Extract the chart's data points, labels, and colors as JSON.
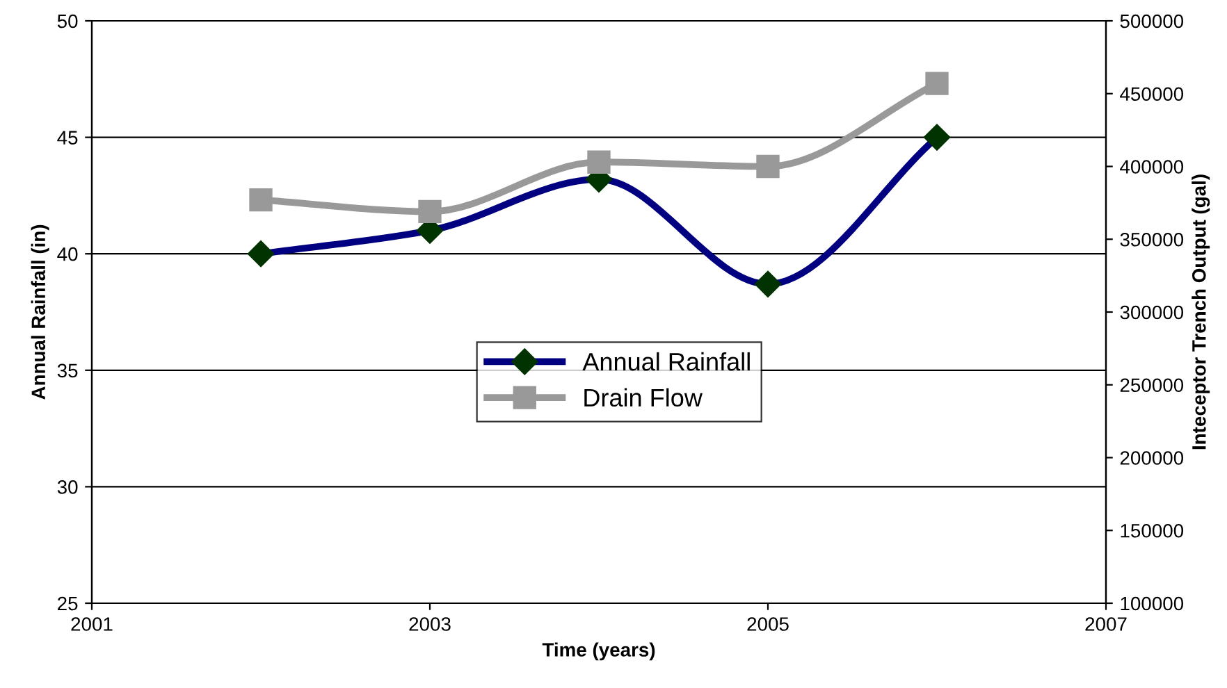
{
  "chart_data": {
    "type": "line",
    "xlabel": "Time (years)",
    "ylabel": "Annual Rainfall (in)",
    "y2label": "Inteceptor Trench Output (gal)",
    "x": [
      2002,
      2003,
      2004,
      2005,
      2006
    ],
    "series": [
      {
        "name": "Annual Rainfall",
        "color": "#000080",
        "colors": [
          "#003300",
          "#003300",
          "#003300",
          "#003300",
          "#003300"
        ],
        "marker": "diamond",
        "values": [
          40.0,
          41.0,
          43.2,
          38.7,
          45.0
        ]
      },
      {
        "name": "Drain Flow",
        "color": "#999999",
        "marker": "square",
        "axis": "y2",
        "values": [
          377000,
          369000,
          403000,
          400000,
          457000
        ]
      }
    ],
    "xlim": [
      2001,
      2007
    ],
    "xticks": [
      2001,
      2003,
      2005,
      2007
    ],
    "ylim": [
      25,
      50
    ],
    "yticks": [
      25,
      30,
      35,
      40,
      45,
      50
    ],
    "y2lim": [
      100000,
      500000
    ],
    "y2ticks": [
      100000,
      150000,
      200000,
      250000,
      300000,
      350000,
      400000,
      450000,
      500000
    ],
    "grid": "y",
    "legend": "center",
    "line_style": "solid"
  }
}
